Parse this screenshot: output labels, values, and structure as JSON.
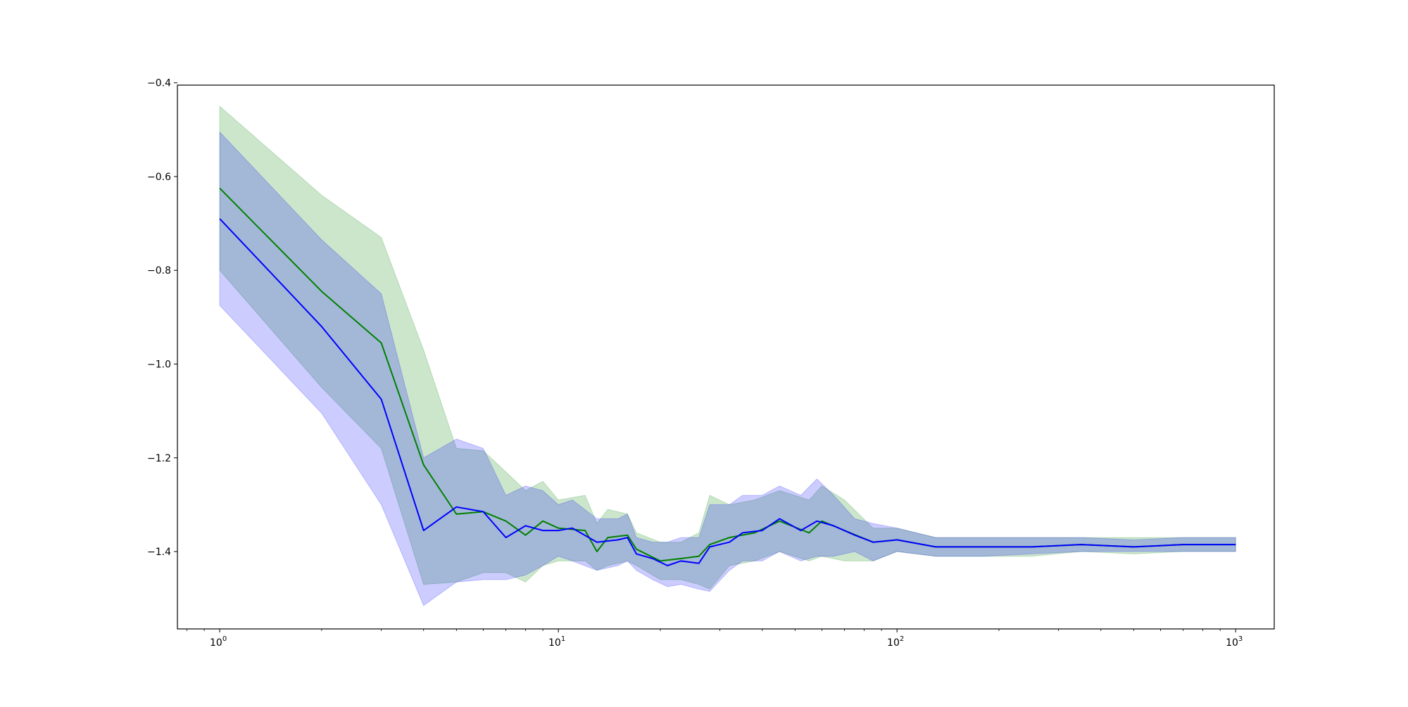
{
  "chart_data": {
    "type": "line",
    "title": "",
    "xlabel": "",
    "ylabel": "",
    "xscale": "log",
    "xlim": [
      0.75,
      1300
    ],
    "ylim": [
      -1.565,
      -0.405
    ],
    "grid": false,
    "legend": "none",
    "x_ticks": [
      {
        "value": 1,
        "base": "10",
        "exp": "0"
      },
      {
        "value": 10,
        "base": "10",
        "exp": "1"
      },
      {
        "value": 100,
        "base": "10",
        "exp": "2"
      },
      {
        "value": 1000,
        "base": "10",
        "exp": "3"
      }
    ],
    "y_ticks": [
      {
        "value": -0.4,
        "label": "−0.4"
      },
      {
        "value": -0.6,
        "label": "−0.6"
      },
      {
        "value": -0.8,
        "label": "−0.8"
      },
      {
        "value": -1.0,
        "label": "−1.0"
      },
      {
        "value": -1.2,
        "label": "−1.2"
      },
      {
        "value": -1.4,
        "label": "−1.4"
      }
    ],
    "series": [
      {
        "color": "#008000",
        "band_color": "#008000",
        "band_opacity": 0.2,
        "points": [
          [
            1,
            -0.625,
            -0.45,
            -0.8
          ],
          [
            2,
            -0.845,
            -0.64,
            -1.05
          ],
          [
            3,
            -0.955,
            -0.73,
            -1.18
          ],
          [
            4,
            -1.215,
            -0.97,
            -1.47
          ],
          [
            5,
            -1.32,
            -1.18,
            -1.465
          ],
          [
            6,
            -1.315,
            -1.185,
            -1.445
          ],
          [
            7,
            -1.335,
            -1.23,
            -1.445
          ],
          [
            8,
            -1.365,
            -1.27,
            -1.465
          ],
          [
            9,
            -1.335,
            -1.25,
            -1.43
          ],
          [
            10,
            -1.35,
            -1.29,
            -1.42
          ],
          [
            12,
            -1.355,
            -1.28,
            -1.42
          ],
          [
            13,
            -1.4,
            -1.34,
            -1.44
          ],
          [
            14,
            -1.37,
            -1.31,
            -1.43
          ],
          [
            16,
            -1.365,
            -1.32,
            -1.42
          ],
          [
            17,
            -1.395,
            -1.36,
            -1.43
          ],
          [
            20,
            -1.42,
            -1.38,
            -1.46
          ],
          [
            23,
            -1.415,
            -1.38,
            -1.46
          ],
          [
            26,
            -1.41,
            -1.36,
            -1.47
          ],
          [
            28,
            -1.385,
            -1.28,
            -1.48
          ],
          [
            32,
            -1.37,
            -1.3,
            -1.43
          ],
          [
            38,
            -1.36,
            -1.29,
            -1.42
          ],
          [
            45,
            -1.335,
            -1.27,
            -1.4
          ],
          [
            55,
            -1.36,
            -1.29,
            -1.42
          ],
          [
            60,
            -1.335,
            -1.26,
            -1.41
          ],
          [
            70,
            -1.355,
            -1.29,
            -1.42
          ],
          [
            85,
            -1.38,
            -1.35,
            -1.42
          ],
          [
            100,
            -1.375,
            -1.35,
            -1.4
          ],
          [
            130,
            -1.39,
            -1.37,
            -1.41
          ],
          [
            180,
            -1.39,
            -1.37,
            -1.41
          ],
          [
            250,
            -1.39,
            -1.37,
            -1.41
          ],
          [
            350,
            -1.385,
            -1.37,
            -1.4
          ],
          [
            500,
            -1.39,
            -1.37,
            -1.405
          ],
          [
            700,
            -1.385,
            -1.37,
            -1.4
          ],
          [
            1000,
            -1.385,
            -1.37,
            -1.4
          ]
        ]
      },
      {
        "color": "#0000ff",
        "band_color": "#0000ff",
        "band_opacity": 0.2,
        "points": [
          [
            1,
            -0.69,
            -0.505,
            -0.875
          ],
          [
            2,
            -0.92,
            -0.735,
            -1.105
          ],
          [
            3,
            -1.075,
            -0.85,
            -1.3
          ],
          [
            4,
            -1.355,
            -1.2,
            -1.515
          ],
          [
            5,
            -1.305,
            -1.16,
            -1.465
          ],
          [
            6,
            -1.315,
            -1.18,
            -1.46
          ],
          [
            7,
            -1.37,
            -1.28,
            -1.46
          ],
          [
            8,
            -1.345,
            -1.26,
            -1.45
          ],
          [
            9,
            -1.355,
            -1.27,
            -1.43
          ],
          [
            10,
            -1.355,
            -1.3,
            -1.41
          ],
          [
            11,
            -1.35,
            -1.29,
            -1.42
          ],
          [
            13,
            -1.38,
            -1.33,
            -1.44
          ],
          [
            15,
            -1.375,
            -1.33,
            -1.43
          ],
          [
            16,
            -1.37,
            -1.32,
            -1.42
          ],
          [
            17,
            -1.405,
            -1.37,
            -1.44
          ],
          [
            19,
            -1.415,
            -1.38,
            -1.46
          ],
          [
            21,
            -1.43,
            -1.38,
            -1.475
          ],
          [
            23,
            -1.42,
            -1.37,
            -1.47
          ],
          [
            26,
            -1.425,
            -1.37,
            -1.48
          ],
          [
            28,
            -1.39,
            -1.3,
            -1.485
          ],
          [
            32,
            -1.38,
            -1.3,
            -1.44
          ],
          [
            35,
            -1.36,
            -1.28,
            -1.42
          ],
          [
            40,
            -1.355,
            -1.28,
            -1.42
          ],
          [
            45,
            -1.33,
            -1.26,
            -1.4
          ],
          [
            52,
            -1.355,
            -1.28,
            -1.42
          ],
          [
            58,
            -1.335,
            -1.245,
            -1.41
          ],
          [
            65,
            -1.345,
            -1.28,
            -1.41
          ],
          [
            75,
            -1.365,
            -1.33,
            -1.4
          ],
          [
            85,
            -1.38,
            -1.34,
            -1.42
          ],
          [
            100,
            -1.375,
            -1.35,
            -1.4
          ],
          [
            130,
            -1.39,
            -1.37,
            -1.41
          ],
          [
            180,
            -1.39,
            -1.37,
            -1.41
          ],
          [
            250,
            -1.39,
            -1.37,
            -1.405
          ],
          [
            350,
            -1.385,
            -1.37,
            -1.4
          ],
          [
            500,
            -1.39,
            -1.375,
            -1.4
          ],
          [
            700,
            -1.385,
            -1.37,
            -1.4
          ],
          [
            1000,
            -1.385,
            -1.37,
            -1.4
          ]
        ]
      }
    ]
  }
}
